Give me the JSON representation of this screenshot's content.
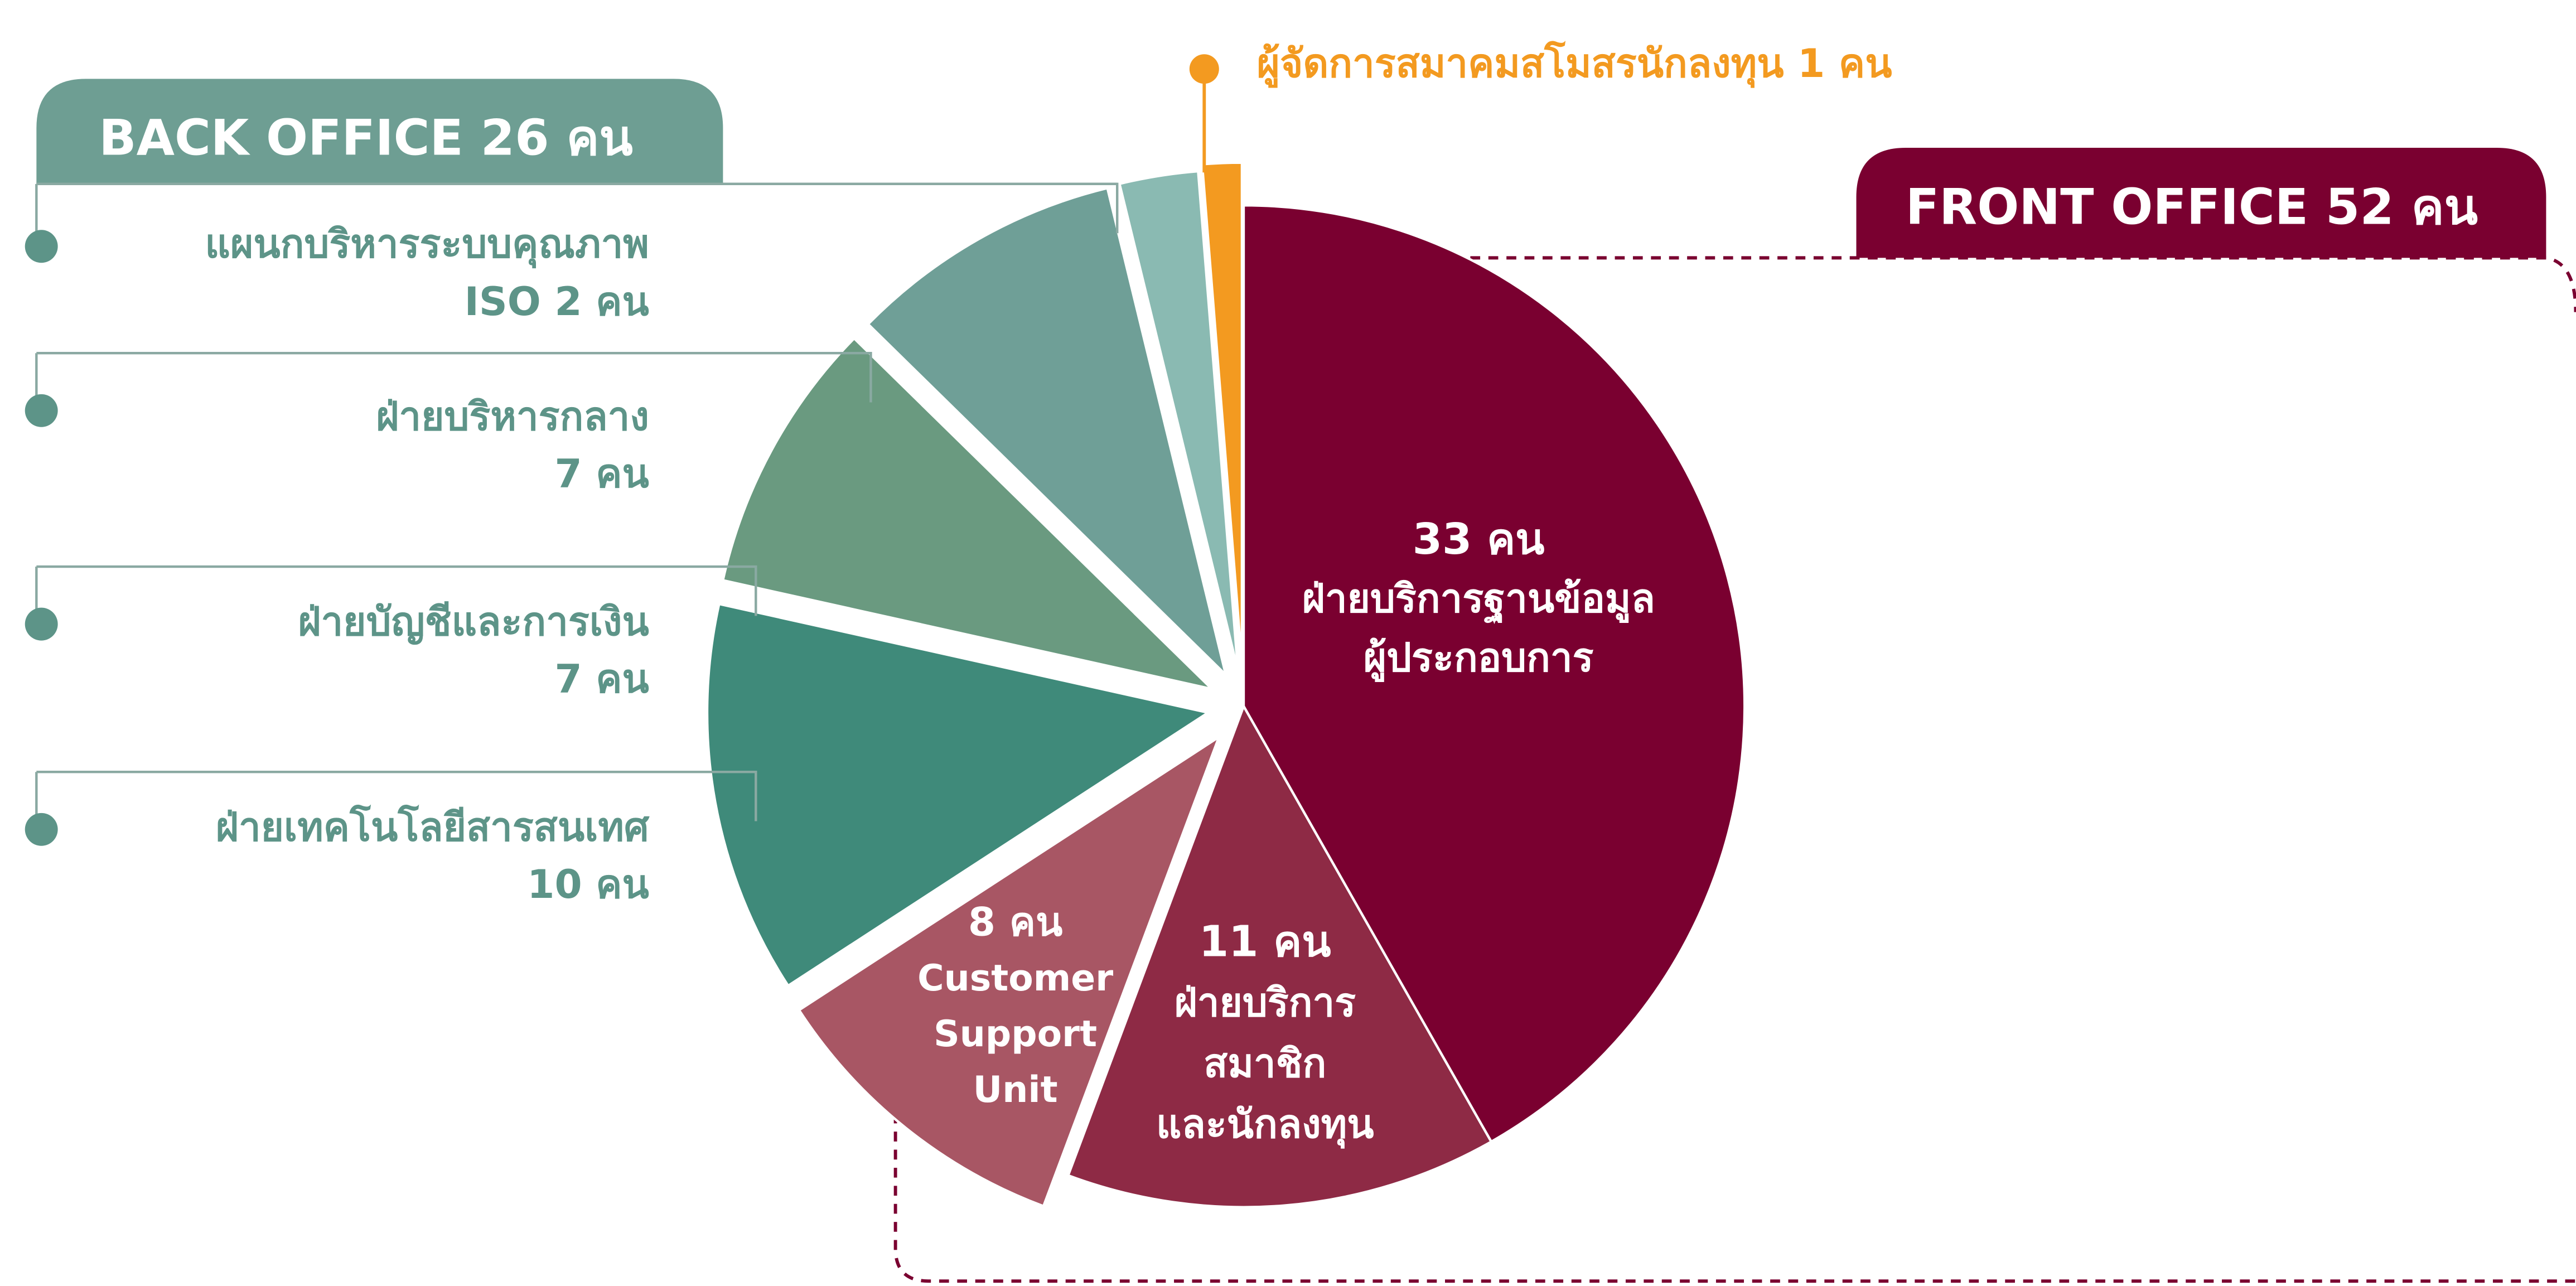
{
  "chart_data": {
    "type": "pie",
    "values": [
      33,
      11,
      8,
      10,
      7,
      7,
      2,
      1
    ],
    "value_labels": [
      "33 คน",
      "11 คน",
      "8 คน",
      "10 คน",
      "7 คน",
      "7 คน",
      "2 คน",
      "1 คน"
    ],
    "categories": [
      [
        "ฝ่ายบริการฐานข้อมูล",
        "ผู้ประกอบการ"
      ],
      [
        "ฝ่ายบริการ",
        "สมาชิก",
        "และนักลงทุน"
      ],
      [
        "Customer",
        "Support",
        "Unit"
      ],
      [
        "ฝ่ายเทคโนโลยีสารสนเทศ"
      ],
      [
        "ฝ่ายบัญชีและการเงิน"
      ],
      [
        "ฝ่ายบริหารกลาง"
      ],
      [
        "แผนกบริหารระบบคุณภาพ",
        "ISO"
      ],
      [
        "ผู้จัดการสมาคมสโมสรนักลงทุน"
      ]
    ],
    "colors": [
      "#7a0030",
      "#8e2a45",
      "#a85664",
      "#3f8a7a",
      "#6a9a80",
      "#6f9f97",
      "#8abab2",
      "#f39a20"
    ],
    "groups": [
      {
        "label": "BACK OFFICE 26 คน"
      },
      {
        "label": "FRONT OFFICE 52 คน"
      }
    ]
  }
}
